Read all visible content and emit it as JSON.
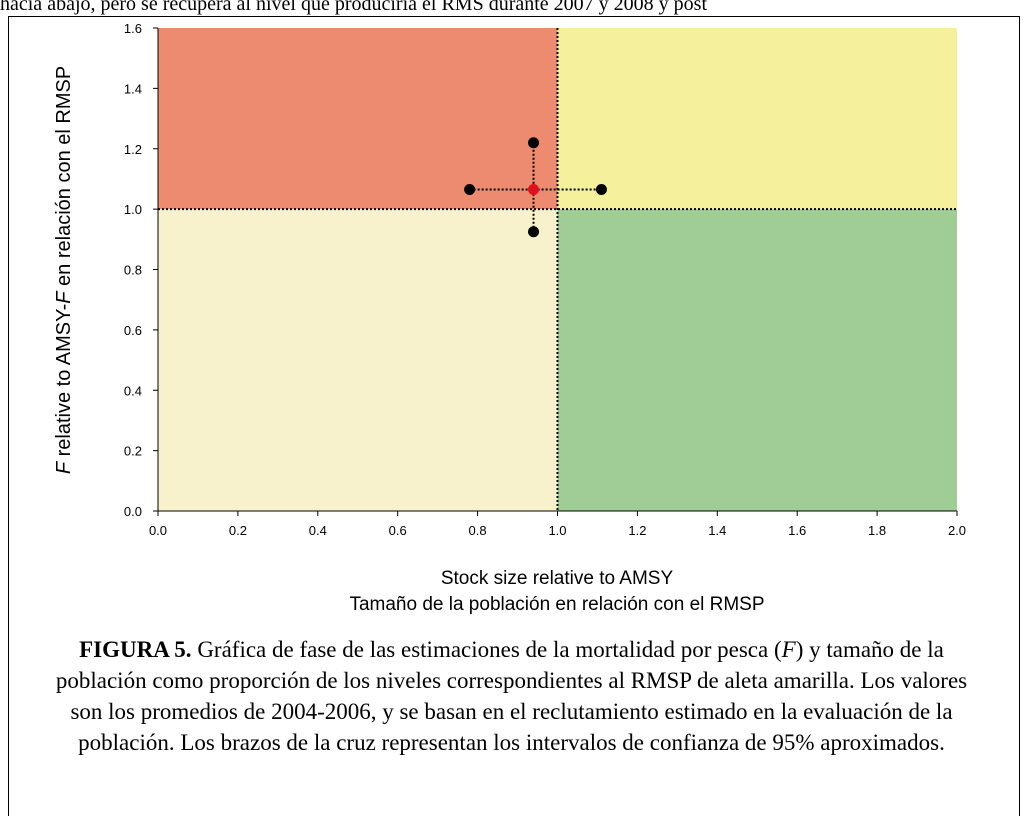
{
  "top_text": "hacia abajo, pero se recupera al nivel que produciría el RMS durante 2007 y 2008 y post",
  "chart_data": {
    "type": "scatter",
    "xlim": [
      0.0,
      2.0
    ],
    "ylim": [
      0.0,
      1.6
    ],
    "xticks": [
      "0.0",
      "0.2",
      "0.4",
      "0.6",
      "0.8",
      "1.0",
      "1.2",
      "1.4",
      "1.6",
      "1.8",
      "2.0"
    ],
    "yticks": [
      "0.0",
      "0.2",
      "0.4",
      "0.6",
      "0.8",
      "1.0",
      "1.2",
      "1.4",
      "1.6"
    ],
    "xlabel_en": "Stock size relative to AMSY",
    "xlabel_es": "Tamaño de la población en relación con el RMSP",
    "ylabel_italic": "F",
    "ylabel_mid": " relative to AMSY-",
    "ylabel_italic2": "F",
    "ylabel_rest": " en relación con el RMSP",
    "reference_x": 1.0,
    "reference_y": 1.0,
    "quadrant_colors": {
      "upper_left": "#ec8b6f",
      "upper_right": "#f5f09b",
      "lower_left": "#f7f2cc",
      "lower_right": "#a0cd95"
    },
    "estimate": {
      "x": 0.94,
      "y": 1.065,
      "color": "#e0101f"
    },
    "ci_x": [
      0.78,
      1.11
    ],
    "ci_y": [
      0.925,
      1.22
    ]
  },
  "caption": {
    "label": "FIGURA 5.",
    "text_1": "  Gráfica de fase de las estimaciones de la mortalidad por pesca (",
    "italic_F": "F",
    "text_2": ") y tamaño de la población como proporción de los niveles correspondientes al RMSP de aleta amarilla.  Los valores son los promedios de 2004-2006, y se basan en el reclutamiento estimado en la evaluación de la población.  Los brazos de la cruz representan los intervalos de confianza de 95% aproximados."
  }
}
